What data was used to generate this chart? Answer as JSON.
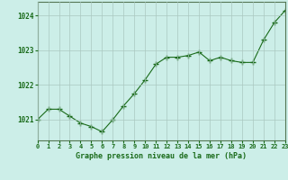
{
  "x": [
    0,
    1,
    2,
    3,
    4,
    5,
    6,
    7,
    8,
    9,
    10,
    11,
    12,
    13,
    14,
    15,
    16,
    17,
    18,
    19,
    20,
    21,
    22,
    23
  ],
  "y": [
    1021.0,
    1021.3,
    1021.3,
    1021.1,
    1020.9,
    1020.8,
    1020.65,
    1021.0,
    1021.4,
    1021.75,
    1022.15,
    1022.6,
    1022.8,
    1022.8,
    1022.85,
    1022.95,
    1022.7,
    1022.8,
    1022.7,
    1022.65,
    1022.65,
    1023.3,
    1023.8,
    1024.15
  ],
  "line_color": "#1a6b1a",
  "marker": "+",
  "marker_size": 4,
  "background_color": "#cceee8",
  "grid_color": "#aac8c0",
  "xlabel": "Graphe pression niveau de la mer (hPa)",
  "xlabel_color": "#1a6b1a",
  "tick_color": "#1a6b1a",
  "ytick_labels": [
    "1021",
    "1022",
    "1023",
    "1024"
  ],
  "ylim": [
    1020.4,
    1024.4
  ],
  "xlim": [
    0,
    23
  ],
  "xtick_labels": [
    "0",
    "1",
    "2",
    "3",
    "4",
    "5",
    "6",
    "7",
    "8",
    "9",
    "10",
    "11",
    "12",
    "13",
    "14",
    "15",
    "16",
    "17",
    "18",
    "19",
    "20",
    "21",
    "22",
    "23"
  ],
  "spine_color": "#557755"
}
